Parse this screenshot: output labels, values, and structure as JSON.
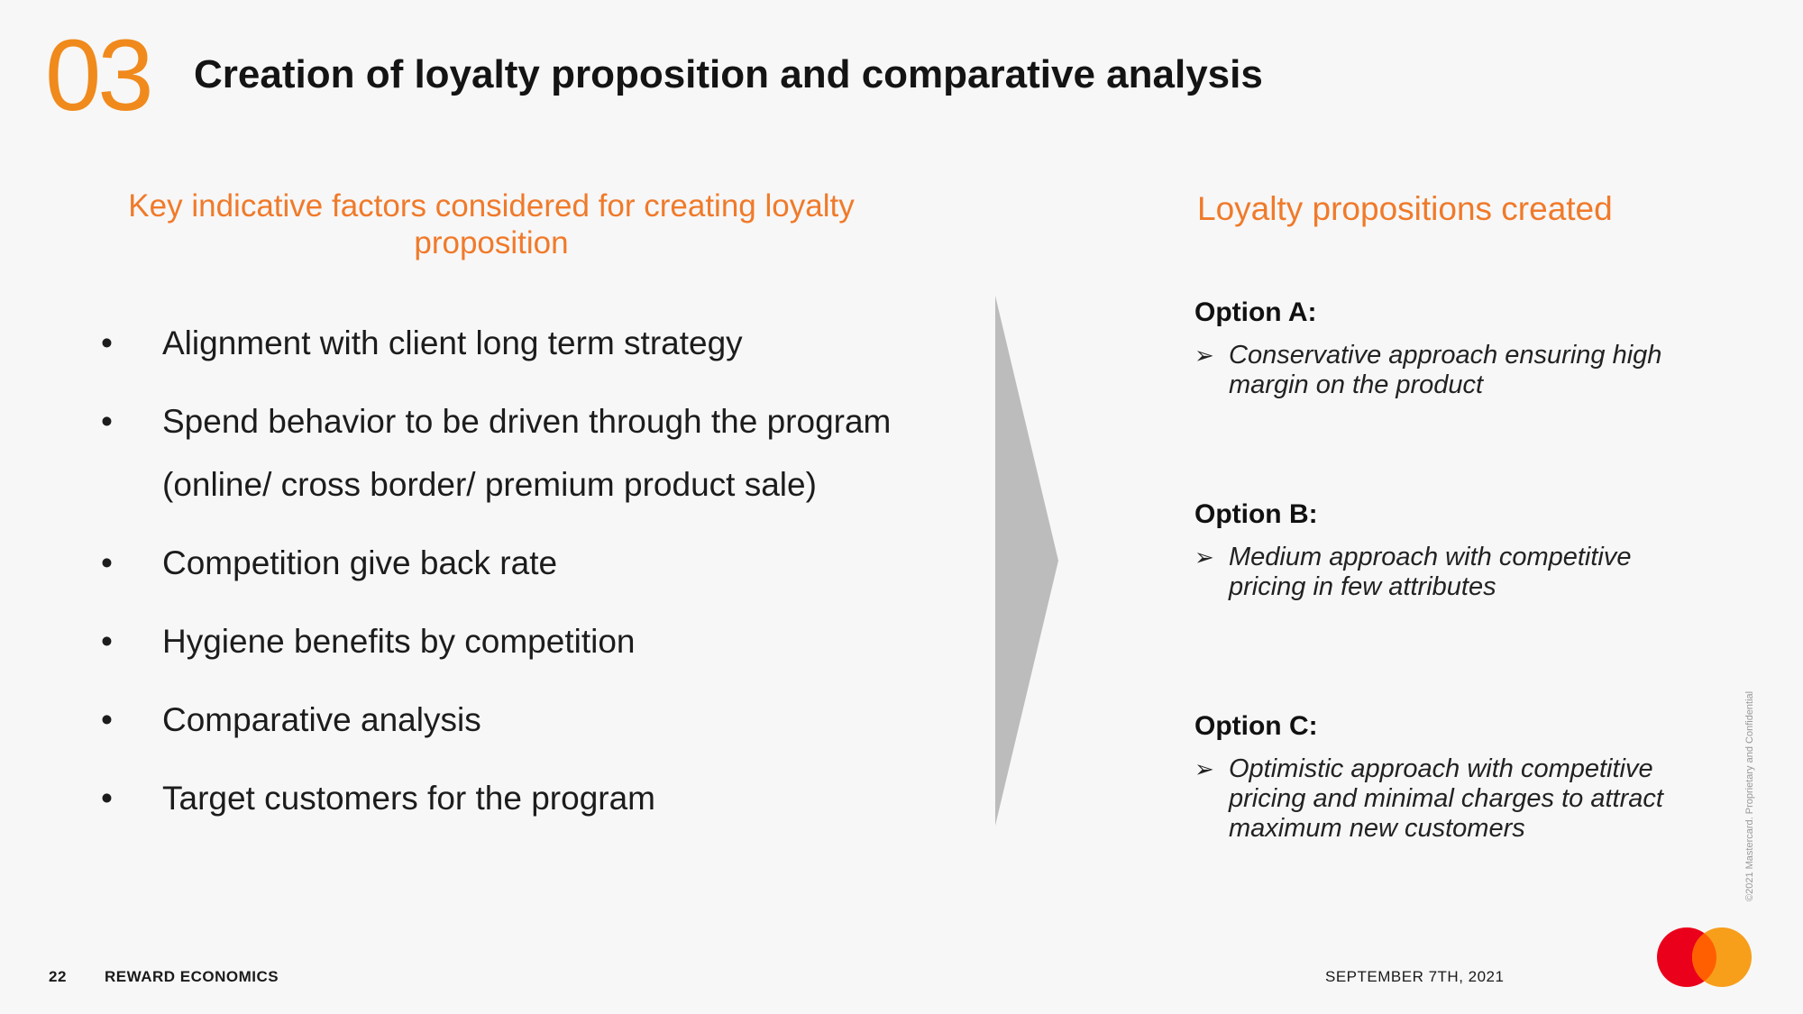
{
  "header": {
    "section_number": "03",
    "title": "Creation of loyalty proposition and comparative analysis"
  },
  "left": {
    "heading": "Key indicative factors considered for creating loyalty proposition",
    "bullet_symbol": "•",
    "factors": [
      "Alignment with client long term strategy",
      "Spend behavior to be driven through the program (online/ cross border/ premium product sale)",
      "Competition give back rate",
      "Hygiene benefits by competition",
      "Comparative analysis",
      "Target customers for the program"
    ]
  },
  "right": {
    "heading": "Loyalty propositions created",
    "pointer_symbol": "➢",
    "options": [
      {
        "name": "Option A:",
        "description": "Conservative approach ensuring high margin on the product"
      },
      {
        "name": "Option B:",
        "description": "Medium approach with competitive pricing in few attributes"
      },
      {
        "name": "Option C:",
        "description": "Optimistic approach with competitive pricing and minimal charges to attract maximum new customers"
      }
    ]
  },
  "footer": {
    "page_number": "22",
    "title": "REWARD ECONOMICS",
    "date": "SEPTEMBER 7TH, 2021",
    "copyright": "©2021 Mastercard. Proprietary and Confidential"
  },
  "colors": {
    "accent_orange": "#f08a1c",
    "heading_orange": "#f07a2a",
    "arrow_gray": "#bcbcbc",
    "logo_red": "#eb001b",
    "logo_yellow": "#f79e1b",
    "logo_overlap": "#ff5f00"
  },
  "icons": {
    "arrow": "chevron-arrow-right-shape",
    "logo": "mastercard-logo"
  }
}
